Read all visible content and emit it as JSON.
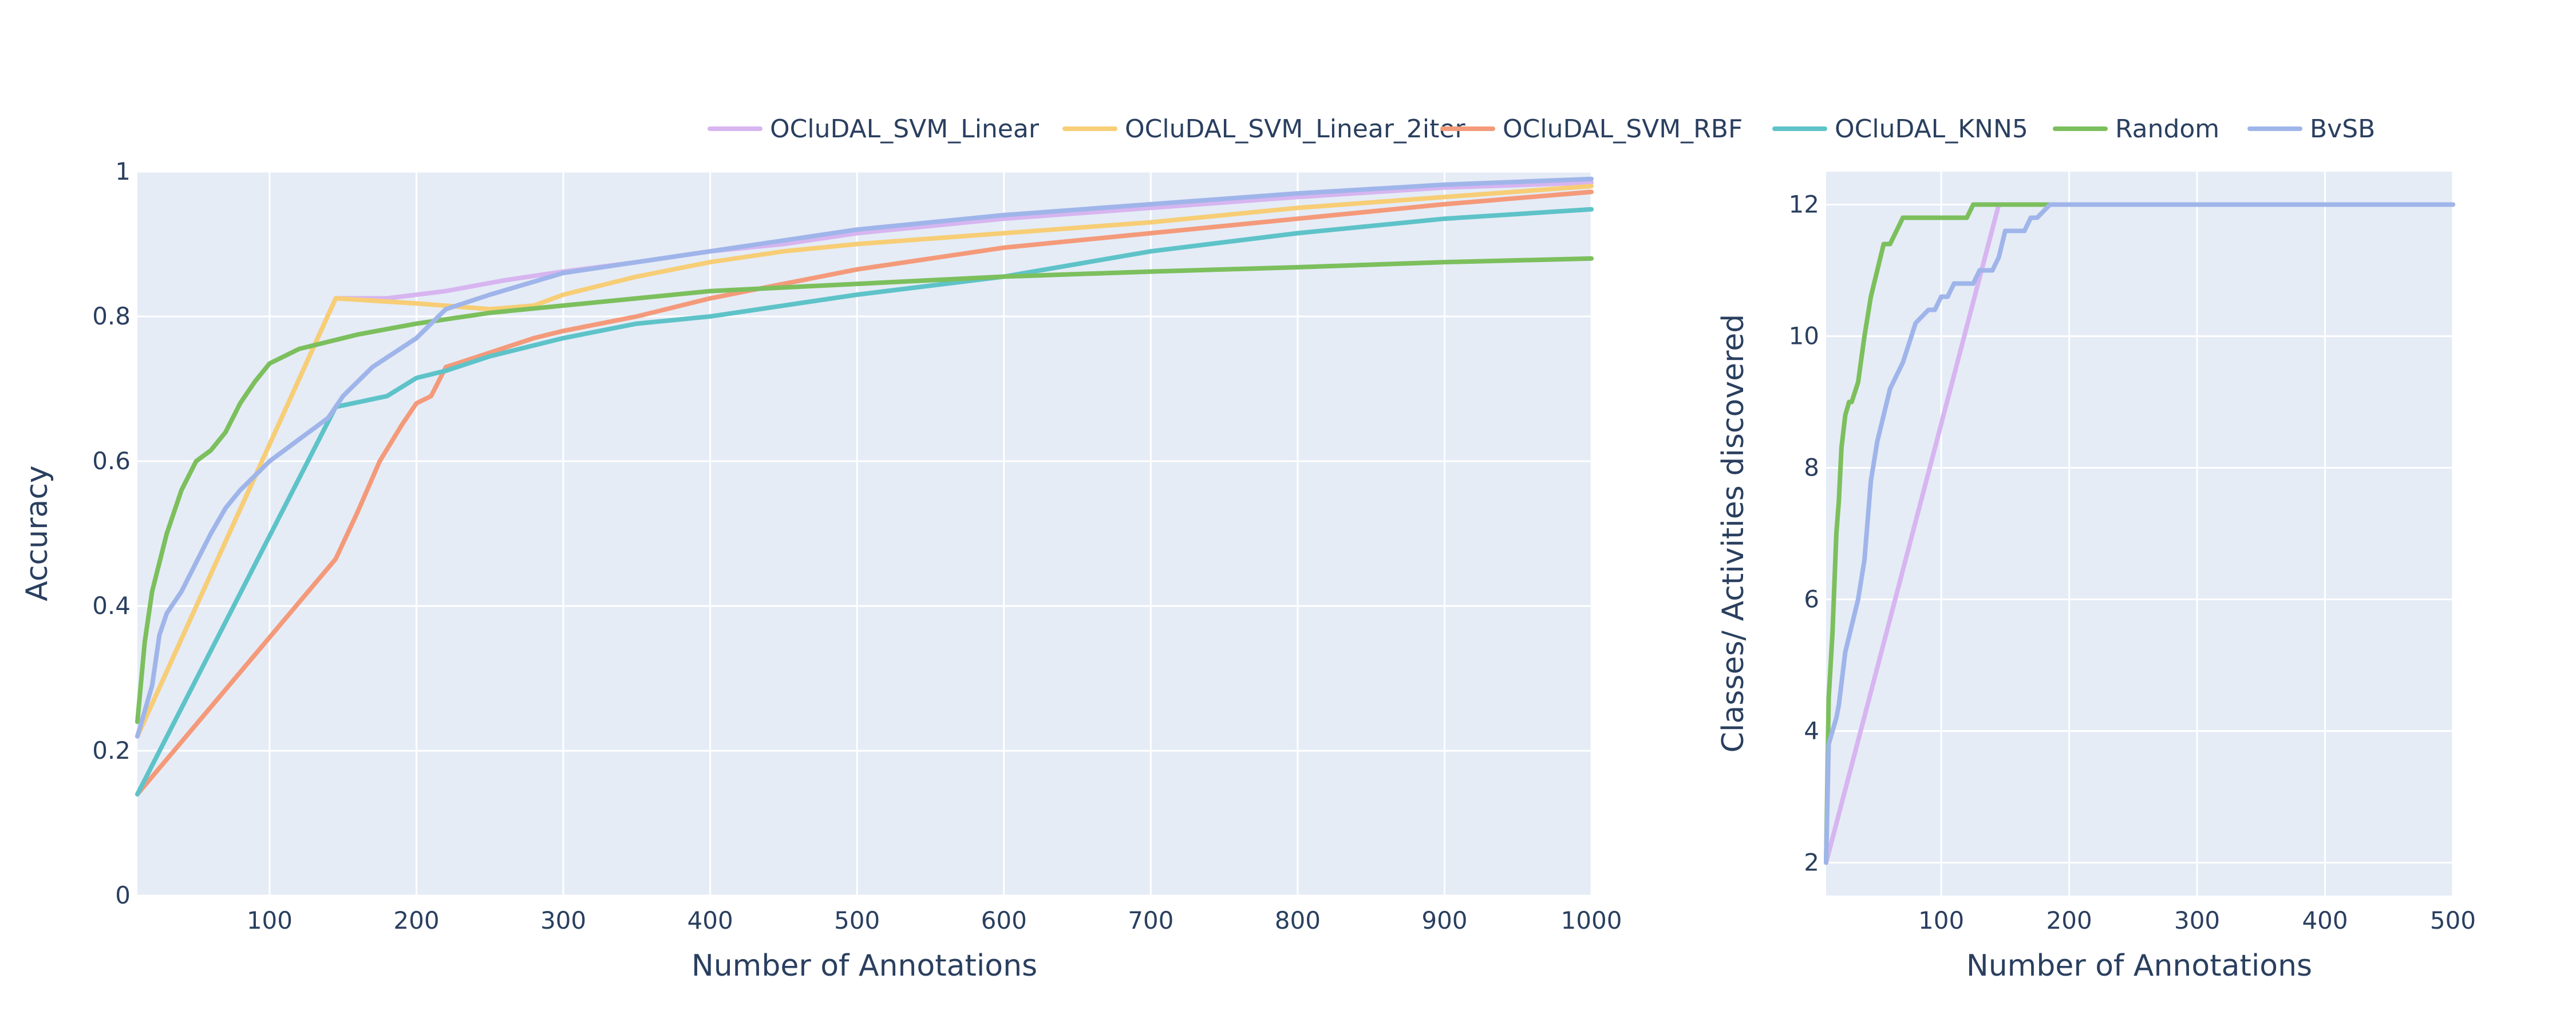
{
  "chart_data": [
    {
      "type": "line",
      "xlabel": "Number of Annotations",
      "ylabel": "Accuracy",
      "xlim": [
        10,
        1000
      ],
      "ylim": [
        0,
        1
      ],
      "x_ticks": [
        100,
        200,
        300,
        400,
        500,
        600,
        700,
        800,
        900,
        1000
      ],
      "y_ticks": [
        0,
        0.2,
        0.4,
        0.6,
        0.8,
        1
      ],
      "y_tick_labels": [
        "0",
        "0.2",
        "0.4",
        "0.6",
        "0.8",
        "1"
      ],
      "grid": true,
      "series": [
        {
          "name": "OCluDAL_SVM_Linear",
          "color": "#d7b5f0",
          "x": [
            10,
            145,
            180,
            220,
            260,
            300,
            350,
            400,
            450,
            500,
            600,
            700,
            800,
            900,
            1000
          ],
          "y": [
            0.22,
            0.825,
            0.825,
            0.835,
            0.85,
            0.862,
            0.875,
            0.89,
            0.9,
            0.915,
            0.935,
            0.95,
            0.965,
            0.978,
            0.985
          ]
        },
        {
          "name": "OCluDAL_SVM_Linear_2iter",
          "color": "#f7ce76",
          "x": [
            10,
            145,
            200,
            250,
            280,
            300,
            350,
            400,
            450,
            500,
            600,
            700,
            800,
            900,
            1000
          ],
          "y": [
            0.22,
            0.825,
            0.818,
            0.81,
            0.815,
            0.83,
            0.855,
            0.875,
            0.89,
            0.9,
            0.915,
            0.93,
            0.95,
            0.965,
            0.98
          ]
        },
        {
          "name": "OCluDAL_SVM_RBF",
          "color": "#f49a7a",
          "x": [
            10,
            145,
            160,
            175,
            190,
            200,
            210,
            220,
            250,
            280,
            300,
            350,
            400,
            450,
            500,
            600,
            700,
            800,
            900,
            1000
          ],
          "y": [
            0.14,
            0.465,
            0.53,
            0.6,
            0.65,
            0.68,
            0.69,
            0.73,
            0.75,
            0.77,
            0.78,
            0.8,
            0.825,
            0.845,
            0.865,
            0.895,
            0.915,
            0.935,
            0.955,
            0.972
          ]
        },
        {
          "name": "OCluDAL_KNN5",
          "color": "#5ec3c8",
          "x": [
            10,
            145,
            180,
            200,
            220,
            250,
            300,
            350,
            400,
            500,
            600,
            700,
            800,
            900,
            1000
          ],
          "y": [
            0.14,
            0.675,
            0.69,
            0.715,
            0.725,
            0.745,
            0.77,
            0.79,
            0.8,
            0.83,
            0.855,
            0.89,
            0.915,
            0.935,
            0.948
          ]
        },
        {
          "name": "Random",
          "color": "#7cbf5d",
          "x": [
            10,
            15,
            20,
            30,
            40,
            50,
            60,
            70,
            80,
            90,
            100,
            120,
            140,
            160,
            200,
            250,
            300,
            350,
            400,
            500,
            600,
            700,
            800,
            900,
            1000
          ],
          "y": [
            0.24,
            0.35,
            0.42,
            0.5,
            0.56,
            0.6,
            0.615,
            0.64,
            0.68,
            0.71,
            0.735,
            0.755,
            0.765,
            0.775,
            0.79,
            0.805,
            0.815,
            0.825,
            0.835,
            0.845,
            0.855,
            0.862,
            0.868,
            0.875,
            0.88
          ]
        },
        {
          "name": "BvSB",
          "color": "#9fb5ea",
          "x": [
            10,
            20,
            25,
            30,
            40,
            50,
            60,
            70,
            80,
            90,
            100,
            110,
            120,
            130,
            140,
            150,
            170,
            200,
            220,
            250,
            300,
            350,
            400,
            500,
            600,
            700,
            800,
            900,
            1000
          ],
          "y": [
            0.22,
            0.29,
            0.36,
            0.39,
            0.42,
            0.46,
            0.5,
            0.535,
            0.56,
            0.58,
            0.6,
            0.615,
            0.63,
            0.645,
            0.66,
            0.69,
            0.73,
            0.77,
            0.81,
            0.83,
            0.86,
            0.875,
            0.89,
            0.92,
            0.94,
            0.955,
            0.97,
            0.982,
            0.99
          ]
        }
      ]
    },
    {
      "type": "line",
      "xlabel": "Number of Annotations",
      "ylabel": "Classes/ Activities discovered",
      "xlim": [
        10,
        500
      ],
      "ylim": [
        1.5,
        12.5
      ],
      "x_ticks": [
        100,
        200,
        300,
        400,
        500
      ],
      "y_ticks": [
        2,
        4,
        6,
        8,
        10,
        12
      ],
      "y_tick_labels": [
        "2",
        "4",
        "6",
        "8",
        "10",
        "12"
      ],
      "grid": true,
      "series": [
        {
          "name": "OCluDAL_SVM_Linear",
          "color": "#d7b5f0",
          "x": [
            10,
            145,
            500
          ],
          "y": [
            2,
            12,
            12
          ]
        },
        {
          "name": "Random",
          "color": "#7cbf5d",
          "x": [
            10,
            12,
            15,
            18,
            20,
            22,
            25,
            28,
            30,
            35,
            40,
            45,
            50,
            55,
            60,
            65,
            70,
            75,
            80,
            100,
            120,
            125,
            130,
            135,
            140,
            145,
            500
          ],
          "y": [
            2,
            4.5,
            5.5,
            7.0,
            7.5,
            8.3,
            8.8,
            9.0,
            9.0,
            9.3,
            10.0,
            10.6,
            11.0,
            11.4,
            11.4,
            11.6,
            11.8,
            11.8,
            11.8,
            11.8,
            11.8,
            12,
            12,
            12,
            12,
            12,
            12
          ]
        },
        {
          "name": "BvSB",
          "color": "#9fb5ea",
          "x": [
            10,
            12,
            15,
            18,
            20,
            25,
            30,
            35,
            40,
            45,
            50,
            55,
            60,
            65,
            70,
            75,
            80,
            85,
            90,
            95,
            100,
            105,
            110,
            115,
            120,
            125,
            130,
            135,
            140,
            145,
            150,
            155,
            160,
            165,
            170,
            175,
            180,
            185,
            500
          ],
          "y": [
            2,
            3.8,
            4.0,
            4.2,
            4.4,
            5.2,
            5.6,
            6.0,
            6.6,
            7.8,
            8.4,
            8.8,
            9.2,
            9.4,
            9.6,
            9.9,
            10.2,
            10.3,
            10.4,
            10.4,
            10.6,
            10.6,
            10.8,
            10.8,
            10.8,
            10.8,
            11.0,
            11.0,
            11.0,
            11.2,
            11.6,
            11.6,
            11.6,
            11.6,
            11.8,
            11.8,
            11.9,
            12,
            12
          ]
        }
      ]
    }
  ]
}
